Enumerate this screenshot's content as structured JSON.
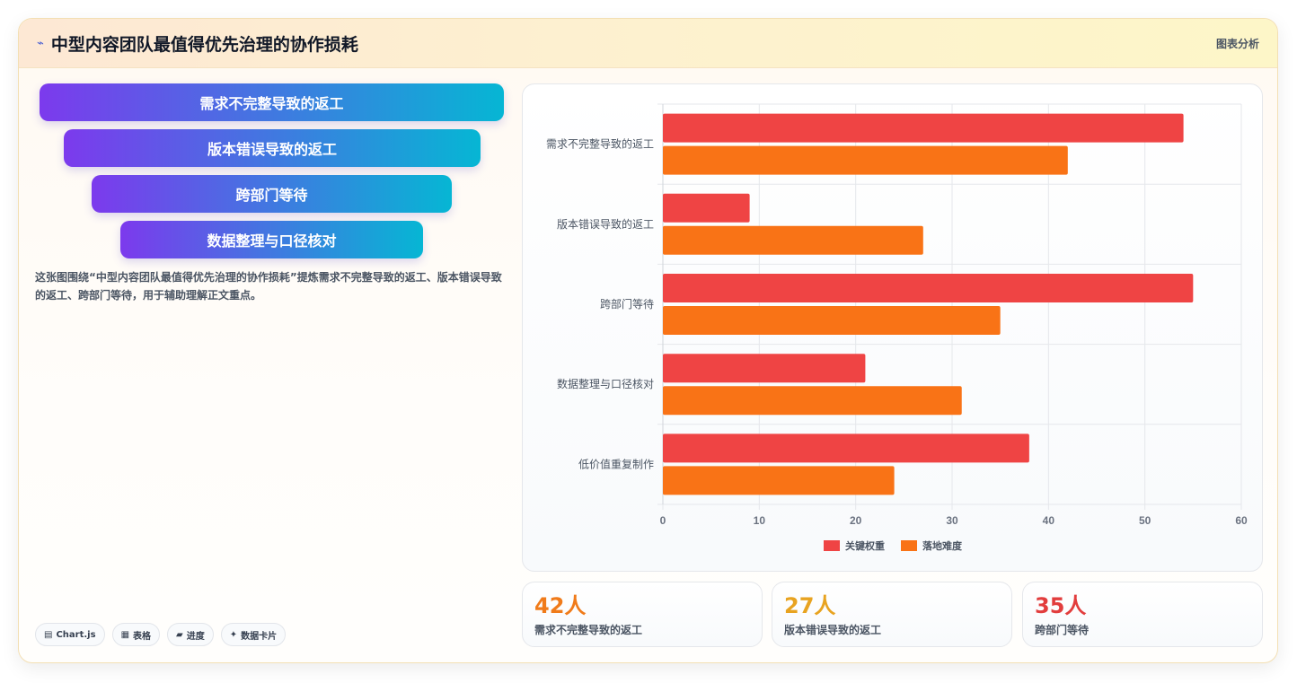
{
  "header": {
    "icon": "⌁",
    "title": "中型内容团队最值得优先治理的协作损耗",
    "tag": "图表分析"
  },
  "funnel": {
    "items": [
      "需求不完整导致的返工",
      "版本错误导致的返工",
      "跨部门等待",
      "数据整理与口径核对"
    ]
  },
  "description": "这张图围绕“中型内容团队最值得优先治理的协作损耗”提炼需求不完整导致的返工、版本错误导致的返工、跨部门等待，用于辅助理解正文重点。",
  "chips": [
    {
      "icon": "▤",
      "label": "Chart.js"
    },
    {
      "icon": "▦",
      "label": "表格"
    },
    {
      "icon": "▰",
      "label": "进度"
    },
    {
      "icon": "✦",
      "label": "数据卡片"
    }
  ],
  "stats": [
    {
      "value": "42人",
      "label": "需求不完整导致的返工",
      "color": "#f07b1a"
    },
    {
      "value": "27人",
      "label": "版本错误导致的返工",
      "color": "#e8a320"
    },
    {
      "value": "35人",
      "label": "跨部门等待",
      "color": "#e23d3d"
    }
  ],
  "chart_data": {
    "type": "bar",
    "orientation": "horizontal",
    "categories": [
      "需求不完整导致的返工",
      "版本错误导致的返工",
      "跨部门等待",
      "数据整理与口径核对",
      "低价值重复制作"
    ],
    "series": [
      {
        "name": "关键权重",
        "color": "#ef4444",
        "values": [
          54,
          9,
          55,
          21,
          38
        ]
      },
      {
        "name": "落地难度",
        "color": "#f97316",
        "values": [
          42,
          27,
          35,
          31,
          24
        ]
      }
    ],
    "xlim": [
      0,
      60
    ],
    "xticks": [
      0,
      10,
      20,
      30,
      40,
      50,
      60
    ],
    "grid": true,
    "legend_position": "bottom"
  }
}
